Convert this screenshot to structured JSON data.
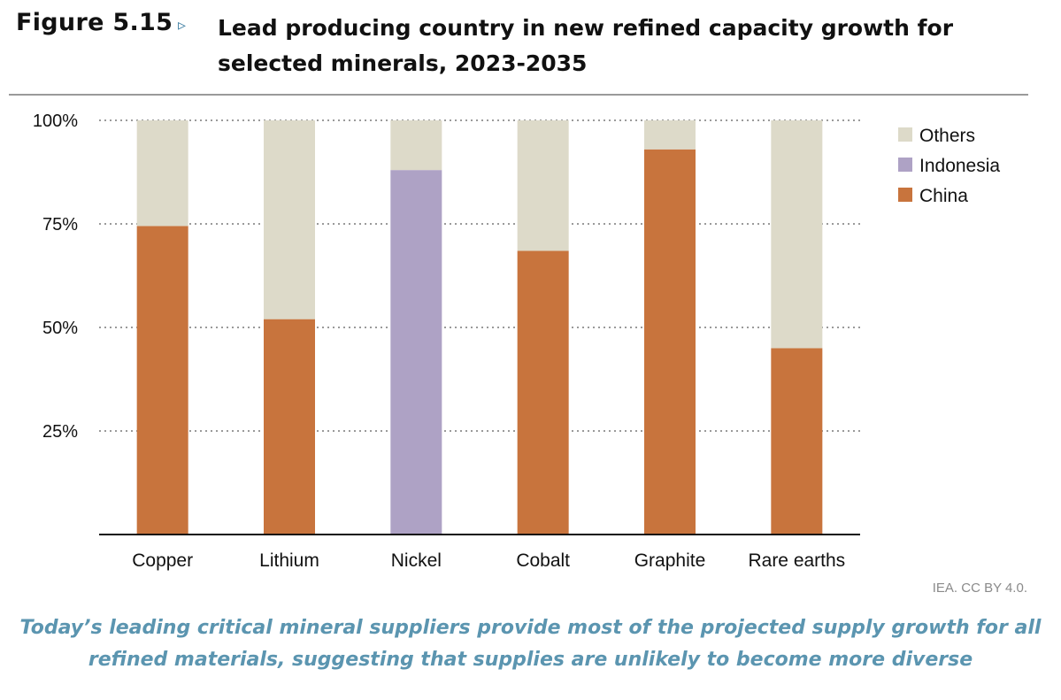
{
  "figure": {
    "label": "Figure 5.15",
    "arrow": "▹",
    "title": "Lead producing country in new refined capacity growth for selected minerals, 2023-2035"
  },
  "source": "IEA. CC BY 4.0.",
  "caption": "Today’s leading critical mineral suppliers provide most of the projected supply growth for all refined materials, suggesting that supplies are unlikely to become more diverse",
  "colors": {
    "China": "#c8743d",
    "Indonesia": "#aea2c5",
    "Others": "#dddac9",
    "grid": "#9a9a9a",
    "axis": "#111111"
  },
  "chart_data": {
    "type": "bar",
    "stacked": true,
    "title": "Lead producing country in new refined capacity growth for selected minerals, 2023-2035",
    "xlabel": "",
    "ylabel": "",
    "ylim": [
      0,
      100
    ],
    "yticks": [
      25,
      50,
      75,
      100
    ],
    "ytick_labels": [
      "25%",
      "50%",
      "75%",
      "100%"
    ],
    "grid": true,
    "legend_position": "top-right",
    "legend_order": [
      "Others",
      "Indonesia",
      "China"
    ],
    "categories": [
      "Copper",
      "Lithium",
      "Nickel",
      "Cobalt",
      "Graphite",
      "Rare earths"
    ],
    "series": [
      {
        "name": "China",
        "values": [
          74.5,
          52,
          0,
          68.5,
          93,
          45
        ]
      },
      {
        "name": "Indonesia",
        "values": [
          0,
          0,
          88,
          0,
          0,
          0
        ]
      },
      {
        "name": "Others",
        "values": [
          25.5,
          48,
          12,
          31.5,
          7,
          55
        ]
      }
    ]
  }
}
